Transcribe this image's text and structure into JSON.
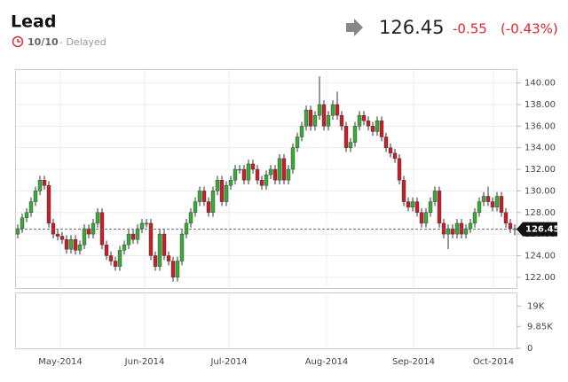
{
  "header": {
    "title": "Lead",
    "date": "10/10",
    "status": "- Delayed",
    "change": "-0.55",
    "change_pct": "(-0.43%)"
  },
  "chart_data": {
    "type": "candlestick",
    "up_color": "#3aa93a",
    "down_color": "#c4202a",
    "grid": true,
    "last_price": 126.45,
    "ylim": [
      121,
      141.2
    ],
    "yticks": [
      {
        "value": 122,
        "label": "122.00"
      },
      {
        "value": 124,
        "label": "124.00"
      },
      {
        "value": 126,
        "label": "126.00"
      },
      {
        "value": 128,
        "label": "128.00"
      },
      {
        "value": 130,
        "label": "130.00"
      },
      {
        "value": 132,
        "label": "132.00"
      },
      {
        "value": 134,
        "label": "134.00"
      },
      {
        "value": 136,
        "label": "136.00"
      },
      {
        "value": 138,
        "label": "138.00"
      },
      {
        "value": 140,
        "label": "140.00"
      }
    ],
    "volume_ylim": [
      0,
      24700
    ],
    "volume_ticks": [
      0,
      {
        "value": 9850,
        "label": "9.85K"
      },
      {
        "value": 19000,
        "label": "19K"
      }
    ],
    "xticks": [
      {
        "value": 9.6,
        "label": "May-2014"
      },
      {
        "value": 28.6,
        "label": "Jun-2014"
      },
      {
        "value": 47.6,
        "label": "Jul-2014"
      },
      {
        "value": 69.6,
        "label": "Aug-2014"
      },
      {
        "value": 89.2,
        "label": "Sep-2014"
      },
      {
        "value": 107.2,
        "label": "Oct-2014"
      }
    ],
    "ohlc": [
      [
        126,
        126.9,
        125.6,
        126.5
      ],
      [
        126.5,
        127.9,
        126.1,
        127.5
      ],
      [
        127.5,
        128.4,
        127.1,
        128
      ],
      [
        128,
        129.4,
        127.6,
        129
      ],
      [
        129,
        130.4,
        128.6,
        130
      ],
      [
        130,
        131.4,
        129.6,
        131
      ],
      [
        131,
        131.4,
        130.1,
        130.5
      ],
      [
        130.5,
        130.9,
        126.6,
        127
      ],
      [
        127,
        127.4,
        125.6,
        126
      ],
      [
        126,
        126.4,
        125.4,
        125.8
      ],
      [
        125.8,
        126.2,
        125.1,
        125.5
      ],
      [
        125.5,
        125.9,
        124.2,
        124.6
      ],
      [
        124.6,
        125.9,
        124.2,
        125.5
      ],
      [
        125.5,
        125.9,
        124.1,
        124.5
      ],
      [
        124.5,
        125.4,
        124.1,
        125
      ],
      [
        125,
        126.9,
        124.6,
        126.5
      ],
      [
        126.5,
        126.9,
        125.6,
        126
      ],
      [
        126,
        127.4,
        125.6,
        127
      ],
      [
        127,
        128.4,
        126.6,
        128
      ],
      [
        128,
        128.4,
        124.6,
        125
      ],
      [
        125,
        125.4,
        123.6,
        124
      ],
      [
        124,
        124.4,
        123.1,
        123.5
      ],
      [
        123.5,
        123.9,
        122.6,
        123
      ],
      [
        123,
        124.9,
        122.6,
        124.5
      ],
      [
        124.5,
        125.4,
        124.1,
        125
      ],
      [
        125,
        126.4,
        124.6,
        126
      ],
      [
        126,
        126.4,
        125.1,
        125.5
      ],
      [
        125.5,
        126.9,
        125.1,
        126.5
      ],
      [
        126.5,
        127.4,
        126.1,
        127
      ],
      [
        127,
        127.4,
        126.6,
        127
      ],
      [
        127,
        127.4,
        123.6,
        124
      ],
      [
        124,
        124.4,
        122.6,
        123
      ],
      [
        123,
        126.4,
        122.6,
        126
      ],
      [
        126,
        126.4,
        123.6,
        124
      ],
      [
        124,
        124.4,
        123.1,
        123.5
      ],
      [
        123.5,
        123.9,
        121.6,
        122
      ],
      [
        122,
        123.9,
        121.6,
        123.5
      ],
      [
        123.5,
        126.4,
        123.1,
        126
      ],
      [
        126,
        127.4,
        125.6,
        127
      ],
      [
        127,
        128.4,
        126.6,
        128
      ],
      [
        128,
        129.4,
        127.6,
        129
      ],
      [
        129,
        130.4,
        128.6,
        130
      ],
      [
        130,
        130.4,
        128.6,
        129
      ],
      [
        129,
        129.4,
        127.6,
        128
      ],
      [
        128,
        130.4,
        127.6,
        130
      ],
      [
        130,
        131.4,
        129.6,
        131
      ],
      [
        131,
        131.4,
        128.6,
        129
      ],
      [
        129,
        130.9,
        128.6,
        130.5
      ],
      [
        130.5,
        131.4,
        130.1,
        131
      ],
      [
        131,
        132.4,
        130.6,
        132
      ],
      [
        132,
        132.4,
        131.6,
        132
      ],
      [
        132,
        132.4,
        130.6,
        131
      ],
      [
        131,
        132.9,
        130.6,
        132.5
      ],
      [
        132.5,
        132.9,
        131.6,
        132
      ],
      [
        132,
        132.4,
        130.6,
        131
      ],
      [
        131,
        131.4,
        130.1,
        130.5
      ],
      [
        130.5,
        131.9,
        130.1,
        131.5
      ],
      [
        131.5,
        132.4,
        131.1,
        132
      ],
      [
        132,
        132.4,
        130.6,
        131
      ],
      [
        131,
        133.4,
        130.6,
        133
      ],
      [
        133,
        133.4,
        130.6,
        131
      ],
      [
        131,
        132.4,
        130.6,
        132
      ],
      [
        132,
        134.4,
        131.6,
        134
      ],
      [
        134,
        135.4,
        133.6,
        135
      ],
      [
        135,
        136.4,
        134.6,
        136
      ],
      [
        136,
        137.9,
        135.6,
        137.5
      ],
      [
        137.5,
        137.9,
        135.6,
        136
      ],
      [
        136,
        137.4,
        135.6,
        137
      ],
      [
        137,
        140.6,
        136.6,
        138
      ],
      [
        138,
        138.4,
        135.6,
        136
      ],
      [
        136,
        137.4,
        135.6,
        137
      ],
      [
        137,
        138.4,
        136.6,
        138
      ],
      [
        138,
        139.2,
        136.6,
        137
      ],
      [
        137,
        137.4,
        135.6,
        136
      ],
      [
        136,
        136.4,
        133.6,
        134
      ],
      [
        134,
        134.9,
        133.6,
        134.5
      ],
      [
        134.5,
        136.4,
        134.1,
        136
      ],
      [
        136,
        137.4,
        135.6,
        137
      ],
      [
        137,
        137.4,
        136.1,
        136.5
      ],
      [
        136.5,
        136.9,
        135.6,
        136
      ],
      [
        136,
        136.4,
        135.1,
        135.5
      ],
      [
        135.5,
        136.9,
        135.1,
        136.5
      ],
      [
        136.5,
        136.9,
        134.6,
        135
      ],
      [
        135,
        135.4,
        133.6,
        134
      ],
      [
        134,
        134.4,
        133.1,
        133.5
      ],
      [
        133.5,
        133.9,
        132.6,
        133
      ],
      [
        133,
        133.4,
        130.6,
        131
      ],
      [
        131,
        131.4,
        128.6,
        129
      ],
      [
        129,
        129.4,
        128.1,
        128.5
      ],
      [
        128.5,
        129.4,
        128.1,
        129
      ],
      [
        129,
        129.4,
        127.6,
        128
      ],
      [
        128,
        128.4,
        126.6,
        127
      ],
      [
        127,
        128.4,
        126.6,
        128
      ],
      [
        128,
        129.4,
        127.6,
        129
      ],
      [
        129,
        130.4,
        128.6,
        130
      ],
      [
        130,
        130.4,
        126.6,
        127
      ],
      [
        127,
        127.4,
        125.6,
        126
      ],
      [
        126,
        126.9,
        124.6,
        126.5
      ],
      [
        126.5,
        126.9,
        125.6,
        126
      ],
      [
        126,
        127.4,
        125.6,
        127
      ],
      [
        127,
        127.4,
        125.6,
        126
      ],
      [
        126,
        126.9,
        125.6,
        126.5
      ],
      [
        126.5,
        127.4,
        126.1,
        127
      ],
      [
        127,
        128.4,
        126.6,
        128
      ],
      [
        128,
        129.4,
        127.6,
        129
      ],
      [
        129,
        129.9,
        128.6,
        129.5
      ],
      [
        129.5,
        130.4,
        128.6,
        129
      ],
      [
        129,
        129.4,
        128.1,
        128.5
      ],
      [
        128.5,
        129.9,
        128.1,
        129.5
      ],
      [
        129.5,
        129.9,
        127.6,
        128
      ],
      [
        128,
        128.4,
        126.6,
        127
      ],
      [
        127,
        127.4,
        126.1,
        126.5
      ],
      [
        126.5,
        126.9,
        125.9,
        126.45
      ]
    ]
  }
}
